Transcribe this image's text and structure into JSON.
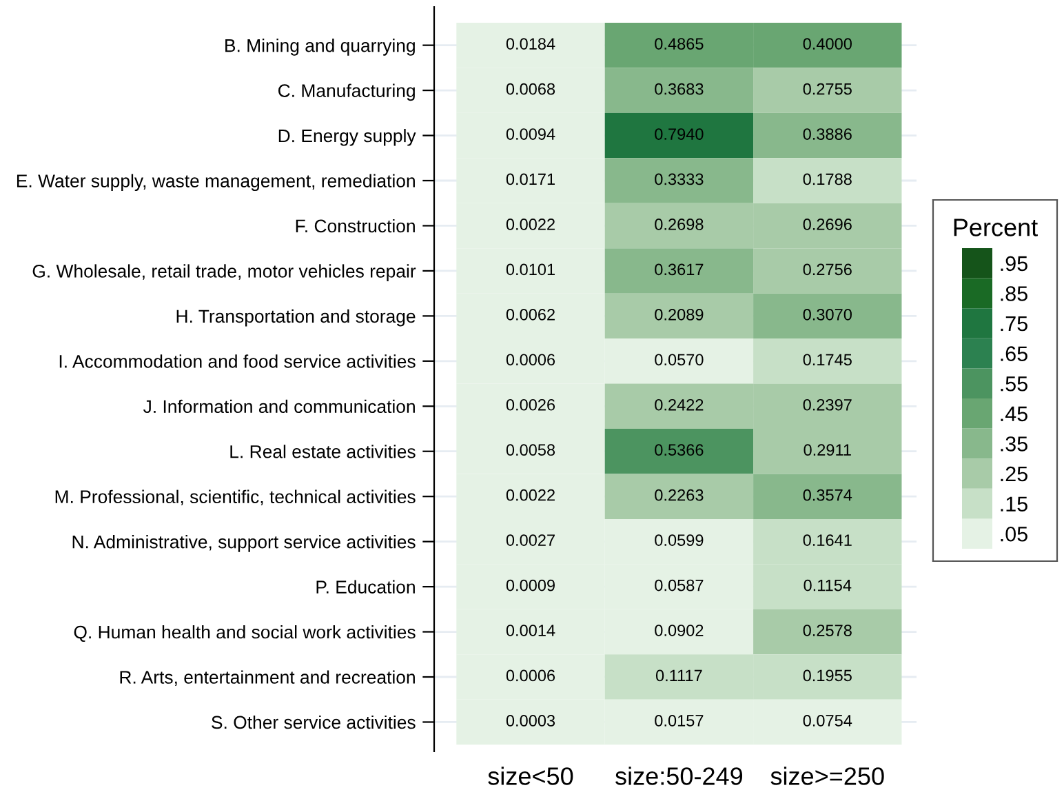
{
  "chart_data": {
    "type": "heatmap",
    "clabel": "Percent",
    "categories": [
      "size<50",
      "size:50-249",
      "size>=250"
    ],
    "y_categories": [
      "B. Mining and quarrying",
      "C. Manufacturing",
      "D. Energy supply",
      "E. Water supply, waste management, remediation",
      "F. Construction",
      "G. Wholesale, retail trade, motor vehicles repair",
      "H. Transportation and storage",
      "I. Accommodation and food service activities",
      "J. Information and communication",
      "L. Real estate activities",
      "M. Professional, scientific, technical activities",
      "N. Administrative, support service activities",
      "P. Education",
      "Q. Human health and social work activities",
      "R. Arts, entertainment and recreation",
      "S. Other service activities"
    ],
    "cells": [
      [
        0.0184,
        0.4865,
        0.4
      ],
      [
        0.0068,
        0.3683,
        0.2755
      ],
      [
        0.0094,
        0.794,
        0.3886
      ],
      [
        0.0171,
        0.3333,
        0.1788
      ],
      [
        0.0022,
        0.2698,
        0.2696
      ],
      [
        0.0101,
        0.3617,
        0.2756
      ],
      [
        0.0062,
        0.2089,
        0.307
      ],
      [
        0.0006,
        0.057,
        0.1745
      ],
      [
        0.0026,
        0.2422,
        0.2397
      ],
      [
        0.0058,
        0.5366,
        0.2911
      ],
      [
        0.0022,
        0.2263,
        0.3574
      ],
      [
        0.0027,
        0.0599,
        0.1641
      ],
      [
        0.0009,
        0.0587,
        0.1154
      ],
      [
        0.0014,
        0.0902,
        0.2578
      ],
      [
        0.0006,
        0.1117,
        0.1955
      ],
      [
        0.0003,
        0.0157,
        0.0754
      ]
    ],
    "cell_labels": [
      [
        "0.0184",
        "0.4865",
        "0.4000"
      ],
      [
        "0.0068",
        "0.3683",
        "0.2755"
      ],
      [
        "0.0094",
        "0.7940",
        "0.3886"
      ],
      [
        "0.0171",
        "0.3333",
        "0.1788"
      ],
      [
        "0.0022",
        "0.2698",
        "0.2696"
      ],
      [
        "0.0101",
        "0.3617",
        "0.2756"
      ],
      [
        "0.0062",
        "0.2089",
        "0.3070"
      ],
      [
        "0.0006",
        "0.0570",
        "0.1745"
      ],
      [
        "0.0026",
        "0.2422",
        "0.2397"
      ],
      [
        "0.0058",
        "0.5366",
        "0.2911"
      ],
      [
        "0.0022",
        "0.2263",
        "0.3574"
      ],
      [
        "0.0027",
        "0.0599",
        "0.1641"
      ],
      [
        "0.0009",
        "0.0587",
        "0.1154"
      ],
      [
        "0.0014",
        "0.0902",
        "0.2578"
      ],
      [
        "0.0006",
        "0.1117",
        "0.1955"
      ],
      [
        "0.0003",
        "0.0157",
        "0.0754"
      ]
    ],
    "clim": [
      0,
      1
    ],
    "cticks": [
      {
        "value": 0.05,
        "label": ".05"
      },
      {
        "value": 0.15,
        "label": ".15"
      },
      {
        "value": 0.25,
        "label": ".25"
      },
      {
        "value": 0.35,
        "label": ".35"
      },
      {
        "value": 0.45,
        "label": ".45"
      },
      {
        "value": 0.55,
        "label": ".55"
      },
      {
        "value": 0.65,
        "label": ".65"
      },
      {
        "value": 0.75,
        "label": ".75"
      },
      {
        "value": 0.85,
        "label": ".85"
      },
      {
        "value": 0.95,
        "label": ".95"
      }
    ],
    "grid": "y"
  }
}
